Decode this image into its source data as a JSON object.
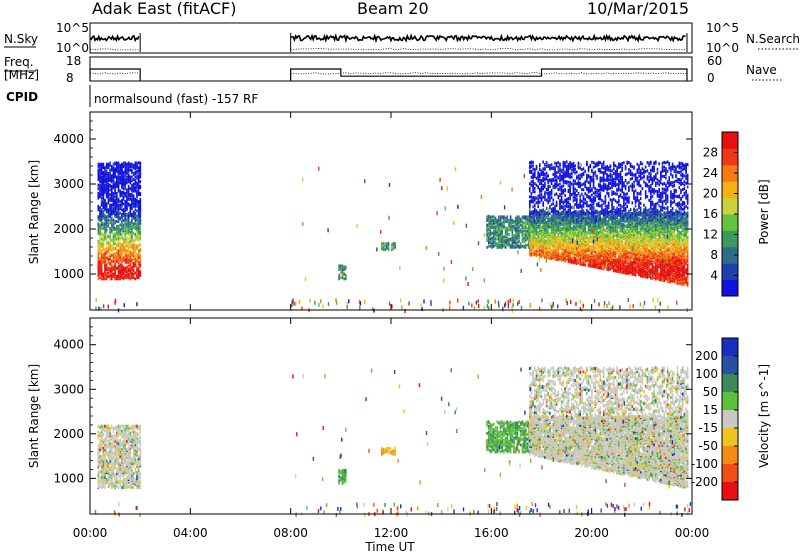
{
  "header": {
    "station": "Adak East (fitACF)",
    "beam": "Beam 20",
    "date": "10/Mar/2015"
  },
  "sky_panel": {
    "left_label": "N.Sky",
    "left_ticks": [
      "10^5",
      "10^0"
    ],
    "right_label": "N.Search",
    "right_ticks": [
      "10^5",
      "10^0"
    ]
  },
  "freq_panel": {
    "left_label_1": "Freq.",
    "left_label_2": "[MHz]",
    "left_ticks": [
      "18",
      "8"
    ],
    "right_label": "Nave",
    "right_ticks": [
      "60",
      "0"
    ]
  },
  "cpid_panel": {
    "label": "CPID",
    "text": "normalsound (fast) -157 RF"
  },
  "colors": {
    "velocity_ground": "#c8c8c4",
    "power_low": "#1f3fb0",
    "power_high": "#ee1c14"
  },
  "chart_data": [
    {
      "type": "heatmap",
      "name": "power",
      "xlabel": "",
      "ylabel": "Slant Range [km]",
      "x_ticks": [
        "00:00",
        "04:00",
        "08:00",
        "12:00",
        "16:00",
        "20:00",
        "00:00"
      ],
      "xlim_hours": [
        0,
        24
      ],
      "y_ticks": [
        1000,
        2000,
        3000,
        4000
      ],
      "ylim_km": [
        200,
        4600
      ],
      "colorbar": {
        "label": "Power [dB]",
        "ticks": [
          4,
          8,
          12,
          16,
          20,
          24,
          28
        ],
        "range": [
          0,
          32
        ],
        "colors": [
          "#1212e0",
          "#1f3fb0",
          "#2f6b8a",
          "#3a9a5c",
          "#64c23c",
          "#c8d23a",
          "#f5b014",
          "#f57a14",
          "#ee3a14",
          "#e61010"
        ]
      },
      "echo_regions": [
        {
          "t": [
            0.3,
            2.0
          ],
          "r": [
            900,
            3500
          ],
          "peak_km": 1050,
          "level": "high"
        },
        {
          "t": [
            9.9,
            10.2
          ],
          "r": [
            900,
            1200
          ],
          "peak_km": 1000,
          "level": "low"
        },
        {
          "t": [
            11.6,
            12.2
          ],
          "r": [
            1550,
            1700
          ],
          "peak_km": 1620,
          "level": "low"
        },
        {
          "t": [
            15.8,
            17.7
          ],
          "r": [
            1600,
            2300
          ],
          "peak_km": 1900,
          "level": "low"
        },
        {
          "t": [
            17.5,
            23.8
          ],
          "r": [
            700,
            3500
          ],
          "peak_km": 1100,
          "level": "high"
        }
      ]
    },
    {
      "type": "heatmap",
      "name": "velocity",
      "xlabel": "Time UT",
      "ylabel": "Slant Range [km]",
      "x_ticks": [
        "00:00",
        "04:00",
        "08:00",
        "12:00",
        "16:00",
        "20:00",
        "00:00"
      ],
      "xlim_hours": [
        0,
        24
      ],
      "y_ticks": [
        1000,
        2000,
        3000,
        4000
      ],
      "ylim_km": [
        200,
        4600
      ],
      "colorbar": {
        "label": "Velocity [m s^-1]",
        "ticks": [
          "200",
          "100",
          "50",
          "15",
          "-15",
          "-50",
          "-100",
          "-200"
        ],
        "colors": [
          "#1a2ec0",
          "#2850a0",
          "#3a8a5a",
          "#5cc03c",
          "#c8c8c4",
          "#f0c41e",
          "#f58a14",
          "#f04e14",
          "#e61010"
        ]
      },
      "echo_regions": [
        {
          "t": [
            0.3,
            2.0
          ],
          "r": [
            800,
            2200
          ],
          "dominant": "ground"
        },
        {
          "t": [
            9.9,
            10.2
          ],
          "r": [
            900,
            1200
          ],
          "dominant": "positive-low"
        },
        {
          "t": [
            11.6,
            12.2
          ],
          "r": [
            1550,
            1700
          ],
          "dominant": "negative-low"
        },
        {
          "t": [
            15.8,
            17.7
          ],
          "r": [
            1600,
            2300
          ],
          "dominant": "positive-low"
        },
        {
          "t": [
            17.5,
            23.8
          ],
          "r": [
            700,
            3500
          ],
          "dominant": "ground"
        }
      ]
    }
  ],
  "series_sky": {
    "coverage_hours": [
      [
        0.0,
        2.0
      ],
      [
        8.0,
        23.8
      ]
    ],
    "level_fraction": 0.55
  },
  "series_freq": {
    "freq_mhz": [
      {
        "t": [
          0.0,
          2.0
        ],
        "v": 13
      },
      {
        "t": [
          8.0,
          10.0
        ],
        "v": 13
      },
      {
        "t": [
          10.0,
          18.0
        ],
        "v": 10
      },
      {
        "t": [
          18.0,
          23.8
        ],
        "v": 13
      }
    ],
    "nave_level": 12
  }
}
